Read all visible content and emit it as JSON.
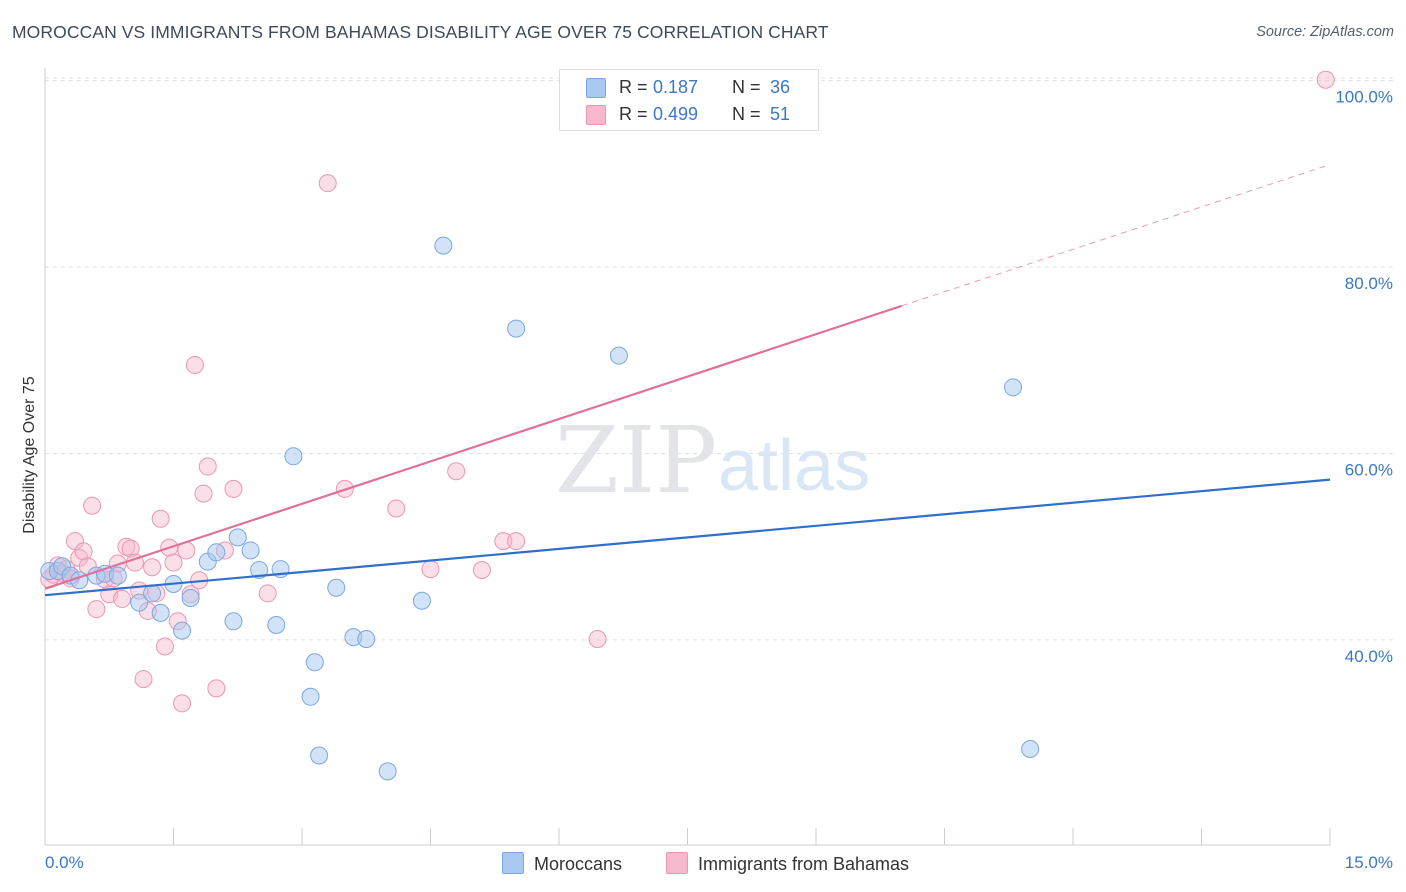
{
  "header": {
    "title": "MOROCCAN VS IMMIGRANTS FROM BAHAMAS DISABILITY AGE OVER 75 CORRELATION CHART",
    "source": "Source: ZipAtlas.com"
  },
  "watermark": {
    "zip": "ZIP",
    "atlas": "atlas"
  },
  "legend": {
    "rows": [
      {
        "r_label": "R =",
        "r_value": "0.187",
        "n_label": "N =",
        "n_value": "36"
      },
      {
        "r_label": "R =",
        "r_value": "0.499",
        "n_label": "N =",
        "n_value": "51"
      }
    ]
  },
  "bottom_legend": {
    "series1": "Moroccans",
    "series2": "Immigrants from Bahamas"
  },
  "colors": {
    "blue_fill": "#a8c8f0",
    "blue_stroke": "#7aa8de",
    "blue_line": "#2f6fcc",
    "pink_fill": "#f6b8cc",
    "pink_stroke": "#ec95b2",
    "pink_line": "#e0709a",
    "tick_label": "#3a78c9",
    "grid": "#dde1e6"
  },
  "chart_data": {
    "type": "scatter",
    "title": "MOROCCAN VS IMMIGRANTS FROM BAHAMAS DISABILITY AGE OVER 75 CORRELATION CHART",
    "xlabel": "",
    "ylabel": "Disability Age Over 75",
    "xlim": [
      0,
      15
    ],
    "ylim": [
      18,
      102
    ],
    "x_tick_labels": [
      "0.0%",
      "15.0%"
    ],
    "y_ticks": [
      40,
      60,
      80,
      100
    ],
    "y_tick_labels": [
      "40.0%",
      "60.0%",
      "80.0%",
      "100.0%"
    ],
    "grid": true,
    "legend_position": "top-center",
    "series": [
      {
        "name": "Moroccans",
        "r": 0.187,
        "n": 36,
        "trend": {
          "x": [
            0,
            15
          ],
          "y": [
            44.8,
            57.2
          ],
          "dashed_after": null
        },
        "points": [
          [
            0.05,
            47.4
          ],
          [
            0.15,
            47.4
          ],
          [
            0.2,
            47.9
          ],
          [
            0.3,
            46.9
          ],
          [
            0.4,
            46.4
          ],
          [
            0.6,
            46.9
          ],
          [
            0.7,
            47.1
          ],
          [
            0.85,
            46.9
          ],
          [
            1.1,
            44.0
          ],
          [
            1.25,
            45.0
          ],
          [
            1.35,
            42.9
          ],
          [
            1.5,
            46.0
          ],
          [
            1.6,
            41.0
          ],
          [
            1.7,
            44.5
          ],
          [
            1.9,
            48.4
          ],
          [
            2.0,
            49.4
          ],
          [
            2.2,
            42.0
          ],
          [
            2.25,
            51.0
          ],
          [
            2.4,
            49.6
          ],
          [
            2.5,
            47.5
          ],
          [
            2.7,
            41.6
          ],
          [
            2.75,
            47.6
          ],
          [
            2.9,
            59.7
          ],
          [
            3.1,
            33.9
          ],
          [
            3.15,
            37.6
          ],
          [
            3.2,
            27.6
          ],
          [
            3.4,
            45.6
          ],
          [
            3.6,
            40.3
          ],
          [
            3.75,
            40.1
          ],
          [
            4.0,
            25.9
          ],
          [
            4.4,
            44.2
          ],
          [
            4.65,
            82.3
          ],
          [
            5.5,
            73.4
          ],
          [
            6.7,
            70.5
          ],
          [
            11.3,
            67.1
          ],
          [
            11.5,
            28.3
          ]
        ]
      },
      {
        "name": "Immigrants from Bahamas",
        "r": 0.499,
        "n": 51,
        "trend": {
          "x": [
            0,
            15
          ],
          "y": [
            45.5,
            91.0
          ],
          "solid_until_x": 10.0
        },
        "points": [
          [
            0.05,
            46.5
          ],
          [
            0.1,
            47.0
          ],
          [
            0.15,
            48.0
          ],
          [
            0.2,
            47.2
          ],
          [
            0.25,
            47.6
          ],
          [
            0.3,
            46.6
          ],
          [
            0.35,
            50.6
          ],
          [
            0.4,
            48.8
          ],
          [
            0.45,
            49.5
          ],
          [
            0.5,
            47.9
          ],
          [
            0.55,
            54.4
          ],
          [
            0.6,
            43.3
          ],
          [
            0.7,
            46.5
          ],
          [
            0.75,
            44.9
          ],
          [
            0.8,
            46.6
          ],
          [
            0.85,
            48.2
          ],
          [
            0.9,
            44.4
          ],
          [
            0.95,
            50.0
          ],
          [
            1.0,
            49.8
          ],
          [
            1.05,
            48.3
          ],
          [
            1.1,
            45.3
          ],
          [
            1.15,
            35.8
          ],
          [
            1.2,
            43.1
          ],
          [
            1.25,
            47.8
          ],
          [
            1.3,
            45.0
          ],
          [
            1.35,
            53.0
          ],
          [
            1.4,
            39.3
          ],
          [
            1.45,
            49.9
          ],
          [
            1.5,
            48.3
          ],
          [
            1.55,
            42.0
          ],
          [
            1.6,
            33.2
          ],
          [
            1.65,
            49.6
          ],
          [
            1.7,
            44.9
          ],
          [
            1.75,
            69.5
          ],
          [
            1.8,
            46.4
          ],
          [
            1.85,
            55.7
          ],
          [
            1.9,
            58.6
          ],
          [
            2.0,
            34.8
          ],
          [
            2.1,
            49.6
          ],
          [
            2.2,
            56.2
          ],
          [
            2.6,
            45.0
          ],
          [
            3.3,
            89.0
          ],
          [
            3.5,
            56.2
          ],
          [
            4.1,
            54.1
          ],
          [
            4.5,
            47.6
          ],
          [
            4.8,
            58.1
          ],
          [
            5.1,
            47.5
          ],
          [
            5.35,
            50.6
          ],
          [
            5.5,
            50.6
          ],
          [
            6.45,
            40.1
          ],
          [
            14.95,
            100.1
          ]
        ]
      }
    ]
  }
}
